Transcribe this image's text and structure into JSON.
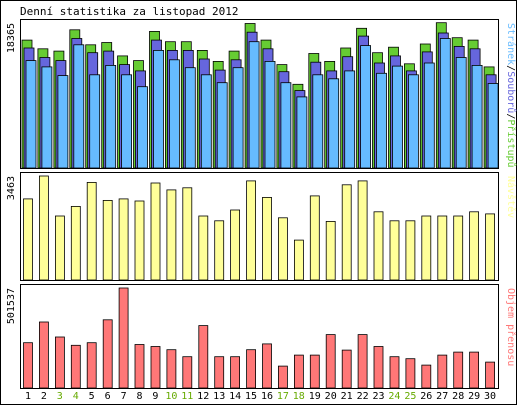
{
  "title": "Denní statistika za listopad 2012",
  "colors": {
    "background": "#ffffff",
    "frame": "#000000",
    "pristupy": "#66cc33",
    "soubory": "#6666dd",
    "stranky": "#66bbff",
    "navstev": "#ffff99",
    "objem": "#ff7777",
    "weekend_tick": "#66aa00",
    "weekday_tick": "#000000"
  },
  "chart_data": [
    {
      "type": "bar",
      "panel": "hits",
      "axis_max_label": "18365",
      "legend": {
        "items": [
          {
            "label": "Stránek",
            "color": "#66bbff"
          },
          {
            "label": "/",
            "color": "#000000"
          },
          {
            "label": "Souborů",
            "color": "#6666dd"
          },
          {
            "label": "/",
            "color": "#000000"
          },
          {
            "label": "Přístupů",
            "color": "#66cc33"
          }
        ]
      },
      "ylim": [
        0,
        18365
      ],
      "categories": [
        "1",
        "2",
        "3",
        "4",
        "5",
        "6",
        "7",
        "8",
        "9",
        "10",
        "11",
        "12",
        "13",
        "14",
        "15",
        "16",
        "17",
        "18",
        "19",
        "20",
        "21",
        "22",
        "23",
        "24",
        "25",
        "26",
        "27",
        "28",
        "29",
        "30"
      ],
      "series": [
        {
          "name": "Přístupů",
          "color": "#66cc33",
          "values": [
            16200,
            15100,
            14800,
            17500,
            15600,
            15900,
            14200,
            13600,
            17300,
            16000,
            16000,
            14900,
            13500,
            14800,
            18300,
            16200,
            13100,
            10600,
            14500,
            13500,
            15200,
            17700,
            14600,
            15300,
            13200,
            15700,
            18400,
            16500,
            16200,
            12800
          ]
        },
        {
          "name": "Souborů",
          "color": "#6666dd",
          "values": [
            15200,
            14000,
            13600,
            16400,
            14600,
            14800,
            13100,
            12300,
            16200,
            14900,
            14900,
            13800,
            12400,
            13700,
            17200,
            15100,
            12200,
            9800,
            13400,
            12300,
            14100,
            16700,
            13300,
            14200,
            12300,
            14700,
            17100,
            15400,
            15100,
            11800
          ]
        },
        {
          "name": "Stránek",
          "color": "#66bbff",
          "values": [
            13600,
            12800,
            11700,
            15600,
            11800,
            13000,
            11800,
            10300,
            14900,
            13700,
            12700,
            11800,
            10800,
            12700,
            16000,
            13500,
            10800,
            9000,
            11800,
            11300,
            12300,
            15500,
            12000,
            12900,
            11800,
            13300,
            16400,
            14000,
            13000,
            10700
          ]
        }
      ]
    },
    {
      "type": "bar",
      "panel": "visits",
      "axis_max_label": "3463",
      "legend": {
        "items": [
          {
            "label": "Návštěv",
            "color": "#ffff99"
          }
        ]
      },
      "ylim": [
        0,
        3463
      ],
      "categories": [
        "1",
        "2",
        "3",
        "4",
        "5",
        "6",
        "7",
        "8",
        "9",
        "10",
        "11",
        "12",
        "13",
        "14",
        "15",
        "16",
        "17",
        "18",
        "19",
        "20",
        "21",
        "22",
        "23",
        "24",
        "25",
        "26",
        "27",
        "28",
        "29",
        "30"
      ],
      "series": [
        {
          "name": "Návštěv",
          "color": "#ffff99",
          "values": [
            2700,
            3463,
            2130,
            2450,
            3250,
            2650,
            2700,
            2630,
            3230,
            3000,
            3070,
            2130,
            1970,
            2330,
            3300,
            2750,
            2070,
            1330,
            2800,
            1950,
            3170,
            3300,
            2270,
            1970,
            1970,
            2130,
            2130,
            2130,
            2270,
            2200
          ]
        }
      ]
    },
    {
      "type": "bar",
      "panel": "transfer",
      "axis_max_label": "501537",
      "legend": {
        "items": [
          {
            "label": "Objem přenosu",
            "color": "#ff7777"
          }
        ]
      },
      "ylim": [
        0,
        501537
      ],
      "categories": [
        "1",
        "2",
        "3",
        "4",
        "5",
        "6",
        "7",
        "8",
        "9",
        "10",
        "11",
        "12",
        "13",
        "14",
        "15",
        "16",
        "17",
        "18",
        "19",
        "20",
        "21",
        "22",
        "23",
        "24",
        "25",
        "26",
        "27",
        "28",
        "29",
        "30"
      ],
      "series": [
        {
          "name": "Objem přenosu",
          "color": "#ff7777",
          "values": [
            227000,
            331000,
            256000,
            214000,
            227000,
            342000,
            501537,
            218000,
            208000,
            192000,
            157000,
            313000,
            157000,
            157000,
            192000,
            221000,
            110000,
            165000,
            165000,
            268000,
            190000,
            268000,
            208000,
            157000,
            147000,
            115000,
            165000,
            180000,
            180000,
            130000
          ]
        }
      ]
    }
  ],
  "x_axis": {
    "labels": [
      "1",
      "2",
      "3",
      "4",
      "5",
      "6",
      "7",
      "8",
      "9",
      "10",
      "11",
      "12",
      "13",
      "14",
      "15",
      "16",
      "17",
      "18",
      "19",
      "20",
      "21",
      "22",
      "23",
      "24",
      "25",
      "26",
      "27",
      "28",
      "29",
      "30"
    ],
    "weekend": [
      false,
      false,
      true,
      true,
      false,
      false,
      false,
      false,
      false,
      true,
      true,
      false,
      false,
      false,
      false,
      false,
      true,
      true,
      false,
      false,
      false,
      false,
      false,
      true,
      true,
      false,
      false,
      false,
      false,
      false
    ]
  }
}
